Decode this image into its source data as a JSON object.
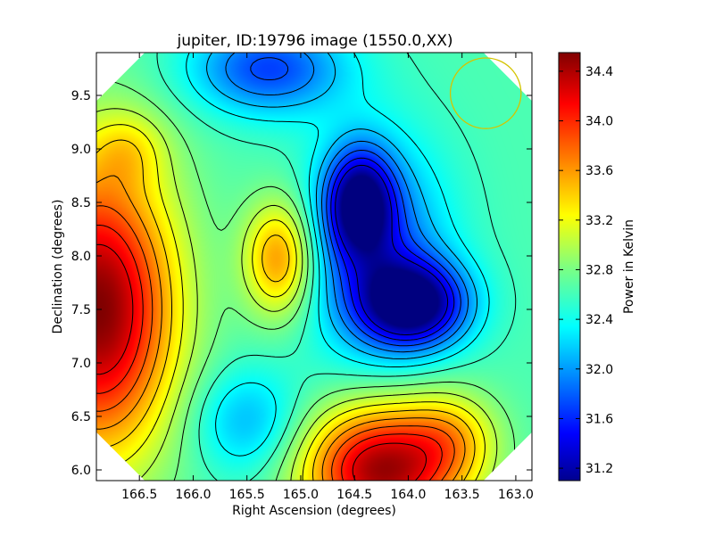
{
  "chart_data": {
    "type": "heatmap",
    "title": "jupiter, ID:19796 image (1550.0,XX)",
    "xlabel": "Right Ascension (degrees)",
    "ylabel": "Declination (degrees)",
    "colorbar_label": "Power in Kelvin",
    "x_axis_reversed": true,
    "xlim": [
      166.9,
      162.85
    ],
    "ylim": [
      5.9,
      9.9
    ],
    "clim": [
      31.1,
      34.55
    ],
    "xticks": [
      166.5,
      166.0,
      165.5,
      165.0,
      164.5,
      164.0,
      163.5,
      163.0
    ],
    "xtick_labels": [
      "166.5",
      "166.0",
      "165.5",
      "165.0",
      "164.5",
      "164.0",
      "163.5",
      "163.0"
    ],
    "yticks": [
      6.0,
      6.5,
      7.0,
      7.5,
      8.0,
      8.5,
      9.0,
      9.5
    ],
    "ytick_labels": [
      "6.0",
      "6.5",
      "7.0",
      "7.5",
      "8.0",
      "8.5",
      "9.0",
      "9.5"
    ],
    "cbar_ticks": [
      31.2,
      31.6,
      32.0,
      32.4,
      32.8,
      33.2,
      33.6,
      34.0,
      34.4
    ],
    "cbar_tick_labels": [
      "31.2",
      "31.6",
      "32.0",
      "32.4",
      "32.8",
      "33.2",
      "33.6",
      "34.0",
      "34.4"
    ],
    "colormap": "jet",
    "contour_levels": [
      31.4,
      31.6,
      31.8,
      32.0,
      32.2,
      32.4,
      32.6,
      32.8,
      33.0,
      33.2,
      33.4,
      33.6,
      33.8,
      34.0,
      34.2
    ],
    "background_level": 32.65,
    "features": [
      {
        "kind": "peak",
        "ra": 166.88,
        "dec": 7.5,
        "value": 34.55,
        "sx": 0.5,
        "sy": 0.95
      },
      {
        "kind": "peak",
        "ra": 164.25,
        "dec": 6.0,
        "value": 34.45,
        "sx": 0.5,
        "sy": 0.42
      },
      {
        "kind": "peak",
        "ra": 165.2,
        "dec": 7.98,
        "value": 33.65,
        "sx": 0.23,
        "sy": 0.38
      },
      {
        "kind": "peak",
        "ra": 163.6,
        "dec": 6.3,
        "value": 33.2,
        "sx": 0.3,
        "sy": 0.3
      },
      {
        "kind": "peak",
        "ra": 166.6,
        "dec": 9.0,
        "value": 33.0,
        "sx": 0.25,
        "sy": 0.25
      },
      {
        "kind": "trough",
        "ra": 163.95,
        "dec": 7.55,
        "value": 31.1,
        "sx": 0.35,
        "sy": 0.28
      },
      {
        "kind": "trough",
        "ra": 164.45,
        "dec": 8.5,
        "value": 31.3,
        "sx": 0.22,
        "sy": 0.35
      },
      {
        "kind": "trough",
        "ra": 164.3,
        "dec": 8.05,
        "value": 31.8,
        "sx": 0.45,
        "sy": 0.7
      },
      {
        "kind": "trough",
        "ra": 165.3,
        "dec": 9.75,
        "value": 31.75,
        "sx": 0.5,
        "sy": 0.3
      },
      {
        "kind": "trough",
        "ra": 165.5,
        "dec": 6.45,
        "value": 32.15,
        "sx": 0.35,
        "sy": 0.35
      }
    ],
    "beam_circle": {
      "ra": 163.28,
      "dec": 9.52,
      "radius_deg": 0.33,
      "color": "#d4c400"
    },
    "octagon_corner_deg": 0.45
  }
}
